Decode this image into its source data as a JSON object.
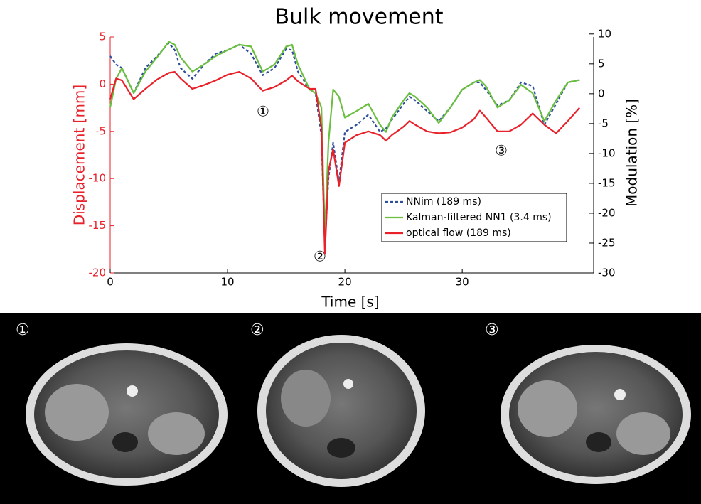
{
  "chart_data": {
    "type": "line",
    "title": "Bulk movement",
    "x_label": "Time [s]",
    "y_label": "Displacement [mm]",
    "y2_label": "Modulation [%]",
    "xlim": [
      0,
      41.2
    ],
    "xticks": [
      0,
      10,
      20,
      30
    ],
    "ylim": [
      -20,
      5
    ],
    "yticks": [
      -20,
      -15,
      -10,
      -5,
      0,
      5
    ],
    "y2lim": [
      -30,
      9.5
    ],
    "y2ticks": [
      -30,
      -25,
      -20,
      -15,
      -10,
      -5,
      0,
      5,
      10
    ],
    "grid": false,
    "legend": "lower right",
    "x": [
      0,
      0.5,
      1,
      2,
      3,
      4,
      5,
      5.5,
      6,
      7,
      8,
      9,
      10,
      11,
      12,
      13,
      14,
      15,
      15.5,
      16,
      17,
      17.5,
      18,
      18.3,
      18.6,
      19,
      19.5,
      20,
      21,
      22,
      23,
      23.5,
      24,
      25,
      25.5,
      26,
      27,
      28,
      29,
      30,
      31,
      31.5,
      32,
      33,
      34,
      35,
      36,
      37,
      38,
      39,
      40
    ],
    "series": [
      {
        "name": "NNim (189 ms)",
        "color": "#2e4f9c",
        "dashed": true,
        "axis": "y2",
        "values": [
          6.3,
          4.9,
          4.3,
          0.1,
          4.3,
          6.3,
          8.5,
          7.3,
          4.3,
          2.5,
          4.9,
          6.7,
          7.3,
          8.2,
          6.7,
          3.1,
          4.3,
          7.5,
          7.3,
          3.7,
          0.7,
          0.1,
          -7.0,
          -25.5,
          -14.2,
          -8.2,
          -14.8,
          -6.4,
          -5.2,
          -3.5,
          -6.4,
          -5.8,
          -4.4,
          -1.7,
          -0.5,
          -1.1,
          -2.9,
          -4.6,
          -2.3,
          0.7,
          1.9,
          1.9,
          0.7,
          -2.0,
          -1.1,
          1.9,
          1.3,
          -5.2,
          -1.7,
          1.9,
          2.3
        ]
      },
      {
        "name": "Kalman-filtered NN1 (3.4 ms)",
        "color": "#6abf3f",
        "dashed": false,
        "axis": "y2",
        "values": [
          -2.3,
          2.5,
          4.3,
          0.1,
          3.7,
          6.1,
          8.7,
          8.2,
          6.1,
          3.7,
          4.9,
          6.3,
          7.3,
          8.2,
          7.9,
          3.7,
          4.9,
          7.9,
          8.2,
          4.9,
          0.7,
          0.1,
          -2.3,
          -23.7,
          -8.2,
          0.7,
          -0.5,
          -4.0,
          -2.9,
          -1.7,
          -5.2,
          -6.4,
          -4.0,
          -1.1,
          0.1,
          -0.5,
          -2.3,
          -4.9,
          -2.3,
          0.7,
          1.9,
          2.3,
          1.3,
          -2.3,
          -1.1,
          1.5,
          0.1,
          -4.6,
          -1.1,
          1.9,
          2.3
        ]
      },
      {
        "name": "optical flow (189 ms)",
        "color": "#e8212a",
        "dashed": false,
        "axis": "y",
        "values": [
          -1.6,
          0.6,
          0.4,
          -1.6,
          -0.5,
          0.5,
          1.2,
          1.3,
          0.6,
          -0.5,
          -0.1,
          0.4,
          1.0,
          1.3,
          0.6,
          -0.7,
          -0.3,
          0.4,
          0.9,
          0.3,
          -0.5,
          -0.5,
          -4.6,
          -18.0,
          -9.2,
          -6.9,
          -10.8,
          -6.2,
          -5.4,
          -5.0,
          -5.4,
          -6.0,
          -5.4,
          -4.5,
          -3.9,
          -4.3,
          -5.0,
          -5.2,
          -5.1,
          -4.6,
          -3.7,
          -2.8,
          -3.5,
          -5.0,
          -5.0,
          -4.3,
          -3.1,
          -4.3,
          -5.2,
          -3.9,
          -2.5
        ]
      }
    ],
    "annotations": [
      "①",
      "②",
      "③"
    ],
    "image_labels": [
      "①",
      "②",
      "③"
    ]
  }
}
